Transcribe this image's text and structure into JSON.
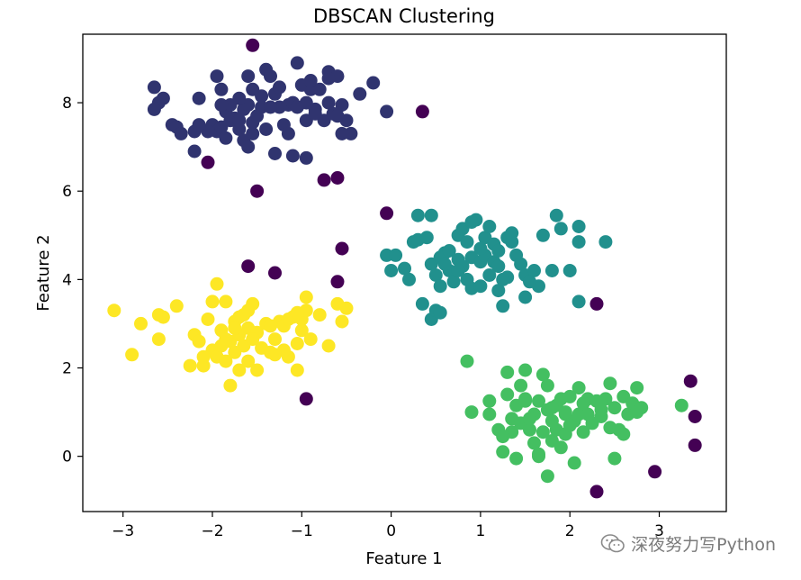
{
  "chart_data": {
    "type": "scatter",
    "title": "DBSCAN Clustering",
    "xlabel": "Feature 1",
    "ylabel": "Feature 2",
    "xlim": [
      -3.45,
      3.75
    ],
    "ylim": [
      -1.25,
      9.55
    ],
    "xticks": [
      -3,
      -2,
      -1,
      0,
      1,
      2,
      3
    ],
    "yticks": [
      0,
      2,
      4,
      6,
      8
    ],
    "xtick_labels": [
      "−3",
      "−2",
      "−1",
      "0",
      "1",
      "2",
      "3"
    ],
    "ytick_labels": [
      "0",
      "2",
      "4",
      "6",
      "8"
    ],
    "grid": false,
    "legend": "none",
    "series": [
      {
        "color": "#30346f",
        "points": [
          [
            -2.65,
            8.35
          ],
          [
            -2.6,
            8.0
          ],
          [
            -2.55,
            8.1
          ],
          [
            -2.65,
            7.85
          ],
          [
            -2.45,
            7.5
          ],
          [
            -2.4,
            7.45
          ],
          [
            -2.2,
            7.35
          ],
          [
            -2.15,
            8.1
          ],
          [
            -2.0,
            7.5
          ],
          [
            -1.95,
            7.35
          ],
          [
            -1.9,
            7.45
          ],
          [
            -1.95,
            8.6
          ],
          [
            -1.9,
            8.3
          ],
          [
            -1.85,
            7.8
          ],
          [
            -1.8,
            7.95
          ],
          [
            -1.75,
            7.6
          ],
          [
            -1.7,
            7.4
          ],
          [
            -1.65,
            7.85
          ],
          [
            -1.6,
            7.95
          ],
          [
            -1.6,
            8.6
          ],
          [
            -1.55,
            7.55
          ],
          [
            -1.5,
            7.7
          ],
          [
            -1.45,
            7.9
          ],
          [
            -1.4,
            8.75
          ],
          [
            -1.35,
            8.6
          ],
          [
            -1.3,
            8.2
          ],
          [
            -1.25,
            7.9
          ],
          [
            -1.2,
            7.5
          ],
          [
            -1.15,
            7.95
          ],
          [
            -1.1,
            8.0
          ],
          [
            -1.05,
            8.9
          ],
          [
            -1.0,
            8.4
          ],
          [
            -0.95,
            8.0
          ],
          [
            -0.9,
            8.3
          ],
          [
            -0.85,
            7.85
          ],
          [
            -0.8,
            8.3
          ],
          [
            -0.75,
            7.6
          ],
          [
            -0.7,
            8.7
          ],
          [
            -0.65,
            7.75
          ],
          [
            -0.6,
            8.6
          ],
          [
            -0.55,
            7.95
          ],
          [
            -0.5,
            7.6
          ],
          [
            -0.45,
            7.3
          ],
          [
            -0.35,
            8.2
          ],
          [
            -0.2,
            8.45
          ],
          [
            -0.05,
            7.8
          ],
          [
            -1.85,
            7.2
          ],
          [
            -1.65,
            7.15
          ],
          [
            -1.55,
            7.3
          ],
          [
            -1.4,
            7.4
          ],
          [
            -1.15,
            7.3
          ],
          [
            -1.3,
            6.85
          ],
          [
            -1.1,
            6.8
          ],
          [
            -0.95,
            6.75
          ],
          [
            -2.2,
            6.9
          ],
          [
            -1.75,
            7.65
          ],
          [
            -2.05,
            7.35
          ],
          [
            -1.45,
            8.15
          ],
          [
            -0.9,
            8.5
          ],
          [
            -1.55,
            8.3
          ],
          [
            -1.7,
            8.1
          ],
          [
            -2.35,
            7.3
          ],
          [
            -1.6,
            7.0
          ],
          [
            -0.7,
            8.0
          ],
          [
            -1.25,
            8.35
          ],
          [
            -0.6,
            7.7
          ],
          [
            -0.95,
            7.6
          ],
          [
            -2.15,
            7.5
          ],
          [
            -1.8,
            7.6
          ],
          [
            -0.7,
            8.55
          ],
          [
            -0.55,
            7.3
          ],
          [
            -1.35,
            7.9
          ],
          [
            -1.05,
            7.9
          ],
          [
            -0.85,
            7.75
          ],
          [
            -1.7,
            7.6
          ],
          [
            -1.9,
            7.95
          ]
        ]
      },
      {
        "color": "#21908d",
        "points": [
          [
            -0.05,
            4.55
          ],
          [
            0.05,
            4.55
          ],
          [
            0.0,
            4.2
          ],
          [
            0.2,
            4.0
          ],
          [
            0.25,
            4.85
          ],
          [
            0.3,
            4.9
          ],
          [
            0.3,
            5.45
          ],
          [
            0.35,
            3.45
          ],
          [
            0.4,
            4.95
          ],
          [
            0.45,
            5.45
          ],
          [
            0.45,
            4.35
          ],
          [
            0.45,
            3.1
          ],
          [
            0.5,
            3.3
          ],
          [
            0.5,
            4.1
          ],
          [
            0.55,
            4.5
          ],
          [
            0.55,
            3.85
          ],
          [
            0.6,
            4.6
          ],
          [
            0.65,
            4.2
          ],
          [
            0.65,
            4.65
          ],
          [
            0.7,
            3.95
          ],
          [
            0.75,
            4.45
          ],
          [
            0.75,
            5.0
          ],
          [
            0.8,
            4.3
          ],
          [
            0.8,
            5.15
          ],
          [
            0.85,
            4.85
          ],
          [
            0.9,
            3.8
          ],
          [
            0.9,
            4.5
          ],
          [
            0.95,
            5.35
          ],
          [
            1.0,
            4.4
          ],
          [
            1.0,
            3.85
          ],
          [
            1.05,
            4.95
          ],
          [
            1.05,
            4.55
          ],
          [
            1.1,
            5.2
          ],
          [
            1.1,
            4.1
          ],
          [
            1.15,
            4.8
          ],
          [
            1.15,
            4.4
          ],
          [
            1.2,
            4.65
          ],
          [
            1.2,
            3.75
          ],
          [
            1.25,
            3.4
          ],
          [
            1.3,
            4.95
          ],
          [
            1.3,
            4.05
          ],
          [
            1.35,
            4.85
          ],
          [
            1.4,
            4.55
          ],
          [
            1.45,
            4.35
          ],
          [
            1.5,
            4.1
          ],
          [
            1.5,
            3.6
          ],
          [
            1.6,
            4.2
          ],
          [
            1.65,
            3.85
          ],
          [
            1.7,
            5.0
          ],
          [
            1.8,
            4.2
          ],
          [
            1.85,
            5.45
          ],
          [
            1.9,
            5.15
          ],
          [
            2.0,
            4.2
          ],
          [
            2.1,
            5.2
          ],
          [
            2.1,
            4.85
          ],
          [
            2.1,
            3.5
          ],
          [
            2.4,
            4.85
          ],
          [
            0.55,
            3.25
          ],
          [
            0.75,
            4.2
          ],
          [
            0.9,
            5.3
          ],
          [
            1.35,
            5.05
          ],
          [
            0.15,
            4.25
          ],
          [
            1.0,
            4.7
          ],
          [
            0.6,
            4.35
          ],
          [
            0.85,
            4.0
          ],
          [
            1.2,
            4.3
          ],
          [
            1.25,
            4.0
          ],
          [
            1.55,
            3.95
          ]
        ]
      },
      {
        "color": "#44bf61",
        "points": [
          [
            0.85,
            2.15
          ],
          [
            0.9,
            1.0
          ],
          [
            1.1,
            1.25
          ],
          [
            1.1,
            0.95
          ],
          [
            1.2,
            0.6
          ],
          [
            1.25,
            0.1
          ],
          [
            1.3,
            1.9
          ],
          [
            1.3,
            1.4
          ],
          [
            1.35,
            0.85
          ],
          [
            1.4,
            1.15
          ],
          [
            1.45,
            1.6
          ],
          [
            1.45,
            0.75
          ],
          [
            1.5,
            1.95
          ],
          [
            1.5,
            1.3
          ],
          [
            1.55,
            0.6
          ],
          [
            1.6,
            0.3
          ],
          [
            1.6,
            0.95
          ],
          [
            1.65,
            1.25
          ],
          [
            1.65,
            0.0
          ],
          [
            1.7,
            1.85
          ],
          [
            1.7,
            0.55
          ],
          [
            1.75,
            1.6
          ],
          [
            1.75,
            1.05
          ],
          [
            1.8,
            0.8
          ],
          [
            1.8,
            0.35
          ],
          [
            1.85,
            1.15
          ],
          [
            1.85,
            0.6
          ],
          [
            1.9,
            1.3
          ],
          [
            1.9,
            0.2
          ],
          [
            1.95,
            0.95
          ],
          [
            1.95,
            0.5
          ],
          [
            2.0,
            1.35
          ],
          [
            2.05,
            0.8
          ],
          [
            2.05,
            -0.15
          ],
          [
            2.1,
            1.55
          ],
          [
            2.1,
            0.95
          ],
          [
            2.15,
            0.55
          ],
          [
            2.2,
            1.3
          ],
          [
            2.25,
            0.75
          ],
          [
            2.3,
            1.25
          ],
          [
            2.35,
            0.9
          ],
          [
            2.4,
            1.3
          ],
          [
            2.45,
            1.65
          ],
          [
            2.45,
            0.65
          ],
          [
            2.5,
            1.1
          ],
          [
            2.55,
            0.6
          ],
          [
            2.6,
            1.35
          ],
          [
            2.65,
            0.95
          ],
          [
            2.7,
            1.2
          ],
          [
            2.75,
            1.55
          ],
          [
            2.8,
            1.1
          ],
          [
            3.25,
            1.15
          ],
          [
            1.75,
            -0.45
          ],
          [
            1.65,
            0.05
          ],
          [
            1.4,
            -0.05
          ],
          [
            1.5,
            1.25
          ],
          [
            1.8,
            1.1
          ],
          [
            2.0,
            0.7
          ],
          [
            2.2,
            0.95
          ],
          [
            2.35,
            1.05
          ],
          [
            2.5,
            -0.05
          ],
          [
            2.6,
            0.5
          ],
          [
            1.35,
            0.55
          ],
          [
            1.55,
            0.85
          ],
          [
            1.95,
            1.0
          ],
          [
            2.15,
            1.2
          ],
          [
            2.75,
            1.0
          ],
          [
            1.25,
            0.45
          ]
        ]
      },
      {
        "color": "#fde725",
        "points": [
          [
            -3.1,
            3.3
          ],
          [
            -2.9,
            2.3
          ],
          [
            -2.8,
            3.0
          ],
          [
            -2.6,
            3.2
          ],
          [
            -2.6,
            2.65
          ],
          [
            -2.55,
            3.15
          ],
          [
            -2.4,
            3.4
          ],
          [
            -2.2,
            2.75
          ],
          [
            -2.15,
            2.6
          ],
          [
            -2.1,
            2.05
          ],
          [
            -2.05,
            3.1
          ],
          [
            -2.0,
            2.4
          ],
          [
            -2.0,
            3.5
          ],
          [
            -1.95,
            2.25
          ],
          [
            -1.95,
            3.9
          ],
          [
            -1.9,
            2.85
          ],
          [
            -1.85,
            2.15
          ],
          [
            -1.85,
            3.5
          ],
          [
            -1.8,
            2.6
          ],
          [
            -1.8,
            1.6
          ],
          [
            -1.75,
            3.05
          ],
          [
            -1.75,
            2.35
          ],
          [
            -1.7,
            2.75
          ],
          [
            -1.7,
            1.95
          ],
          [
            -1.65,
            3.2
          ],
          [
            -1.65,
            2.5
          ],
          [
            -1.6,
            2.9
          ],
          [
            -1.6,
            2.15
          ],
          [
            -1.55,
            3.45
          ],
          [
            -1.5,
            2.8
          ],
          [
            -1.5,
            1.95
          ],
          [
            -1.45,
            2.45
          ],
          [
            -1.4,
            3.0
          ],
          [
            -1.35,
            2.35
          ],
          [
            -1.3,
            2.65
          ],
          [
            -1.25,
            3.05
          ],
          [
            -1.2,
            2.95
          ],
          [
            -1.15,
            2.25
          ],
          [
            -1.1,
            3.15
          ],
          [
            -1.05,
            2.55
          ],
          [
            -1.05,
            1.95
          ],
          [
            -1.0,
            3.1
          ],
          [
            -1.0,
            2.85
          ],
          [
            -0.95,
            3.6
          ],
          [
            -0.95,
            3.3
          ],
          [
            -0.9,
            2.65
          ],
          [
            -0.8,
            3.2
          ],
          [
            -0.7,
            2.5
          ],
          [
            -0.6,
            3.45
          ],
          [
            -0.55,
            3.05
          ],
          [
            -0.5,
            3.35
          ],
          [
            -2.25,
            2.05
          ],
          [
            -2.1,
            2.25
          ],
          [
            -1.9,
            2.5
          ],
          [
            -1.85,
            2.65
          ],
          [
            -1.7,
            3.15
          ],
          [
            -1.55,
            2.65
          ],
          [
            -1.35,
            2.95
          ],
          [
            -1.2,
            2.4
          ],
          [
            -1.15,
            3.1
          ],
          [
            -1.05,
            3.25
          ],
          [
            -1.3,
            2.3
          ],
          [
            -1.75,
            2.9
          ],
          [
            -1.6,
            3.3
          ]
        ]
      },
      {
        "color": "#440154",
        "points": [
          [
            -1.55,
            9.3
          ],
          [
            0.35,
            7.8
          ],
          [
            -2.05,
            6.65
          ],
          [
            -1.5,
            6.0
          ],
          [
            -0.75,
            6.25
          ],
          [
            -0.6,
            6.3
          ],
          [
            -0.05,
            5.5
          ],
          [
            -0.55,
            4.7
          ],
          [
            -1.6,
            4.3
          ],
          [
            -1.3,
            4.15
          ],
          [
            -0.6,
            3.95
          ],
          [
            -0.95,
            1.3
          ],
          [
            2.3,
            3.45
          ],
          [
            3.35,
            1.7
          ],
          [
            3.4,
            0.9
          ],
          [
            3.4,
            0.25
          ],
          [
            2.95,
            -0.35
          ],
          [
            2.3,
            -0.8
          ]
        ]
      }
    ]
  },
  "watermark": {
    "icon": "wechat-icon",
    "text": "深夜努力写Python"
  }
}
